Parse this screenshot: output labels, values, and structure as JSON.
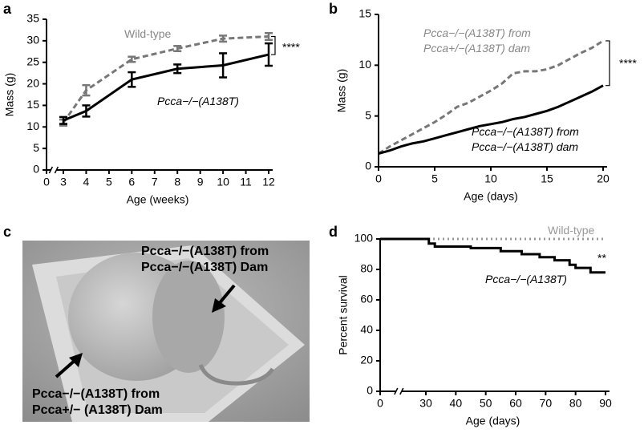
{
  "chart_data": [
    {
      "type": "line",
      "panel": "a",
      "xlabel": "Age (weeks)",
      "ylabel": "Mass (g)",
      "xlim": [
        0,
        12
      ],
      "ylim": [
        0,
        35
      ],
      "xticks": [
        0,
        3,
        4,
        5,
        6,
        7,
        8,
        9,
        10,
        11,
        12
      ],
      "yticks": [
        0,
        5,
        10,
        15,
        20,
        25,
        30,
        35
      ],
      "x_axis_break": true,
      "significance": "****",
      "series": [
        {
          "name": "Wild-type",
          "color": "#777777",
          "line_style": "dashed",
          "x": [
            3,
            4,
            6,
            8,
            10,
            12
          ],
          "values": [
            11,
            18.5,
            25.7,
            28.2,
            30.5,
            31
          ],
          "errors": [
            0.7,
            1.2,
            0.6,
            0.6,
            0.7,
            0.8
          ]
        },
        {
          "name": "Pcca−/−(A138T)",
          "color": "#000000",
          "line_style": "solid",
          "x": [
            3,
            4,
            6,
            8,
            10,
            12
          ],
          "values": [
            11.5,
            13.7,
            21,
            23.5,
            24.3,
            26.8
          ],
          "errors": [
            0.8,
            1.3,
            1.7,
            1,
            2.8,
            2.6
          ]
        }
      ]
    },
    {
      "type": "line",
      "panel": "b",
      "xlabel": "Age (days)",
      "ylabel": "Mass (g)",
      "xlim": [
        0,
        20
      ],
      "ylim": [
        0,
        15
      ],
      "xticks": [
        0,
        5,
        10,
        15,
        20
      ],
      "yticks": [
        0,
        5,
        10,
        15
      ],
      "x_axis_break": false,
      "significance": "****",
      "series": [
        {
          "name": "Pcca−/−(A138T) from Pcca+/−(A138T) dam",
          "color": "#777777",
          "line_style": "dashed",
          "x": [
            0,
            1,
            2,
            3,
            4,
            5,
            6,
            7,
            8,
            9,
            10,
            11,
            12,
            13,
            14,
            15,
            16,
            17,
            18,
            19,
            20
          ],
          "values": [
            1.3,
            2,
            2.6,
            3.2,
            3.8,
            4.4,
            5.1,
            5.9,
            6.3,
            6.9,
            7.5,
            8.2,
            9.2,
            9.4,
            9.4,
            9.6,
            10,
            10.6,
            11.2,
            11.7,
            12.4
          ]
        },
        {
          "name": "Pcca−/−(A138T) from Pcca−/−(A138T) dam",
          "color": "#000000",
          "line_style": "solid",
          "x": [
            0,
            1,
            2,
            3,
            4,
            5,
            6,
            7,
            8,
            9,
            10,
            11,
            12,
            13,
            14,
            15,
            16,
            17,
            18,
            19,
            20
          ],
          "values": [
            1.3,
            1.6,
            2,
            2.3,
            2.5,
            2.8,
            3.1,
            3.4,
            3.7,
            4,
            4.2,
            4.4,
            4.7,
            4.9,
            5.2,
            5.5,
            5.9,
            6.4,
            6.9,
            7.4,
            8
          ]
        }
      ]
    },
    {
      "type": "photo",
      "panel": "c",
      "labels": [
        "Pcca−/−(A138T) from Pcca−/−(A138T) Dam",
        "Pcca−/−(A138T) from Pcca+/− (A138T) Dam"
      ]
    },
    {
      "type": "line",
      "panel": "d",
      "xlabel": "Age (days)",
      "ylabel": "Percent survival",
      "xlim": [
        0,
        90
      ],
      "ylim": [
        0,
        100
      ],
      "xticks": [
        0,
        30,
        40,
        50,
        60,
        70,
        80,
        90
      ],
      "yticks": [
        0,
        20,
        40,
        60,
        80,
        100
      ],
      "x_axis_break": true,
      "step": true,
      "significance": "**",
      "series": [
        {
          "name": "Wild-type",
          "color": "#999999",
          "line_style": "dotted",
          "x": [
            0,
            90
          ],
          "values": [
            100,
            100
          ]
        },
        {
          "name": "Pcca−/−(A138T)",
          "color": "#000000",
          "line_style": "solid",
          "x": [
            0,
            31,
            33,
            45,
            55,
            62,
            68,
            73,
            78,
            80,
            85,
            90
          ],
          "values": [
            100,
            97,
            95,
            94,
            92,
            90,
            88,
            86,
            83,
            81,
            78,
            78
          ]
        }
      ]
    }
  ]
}
